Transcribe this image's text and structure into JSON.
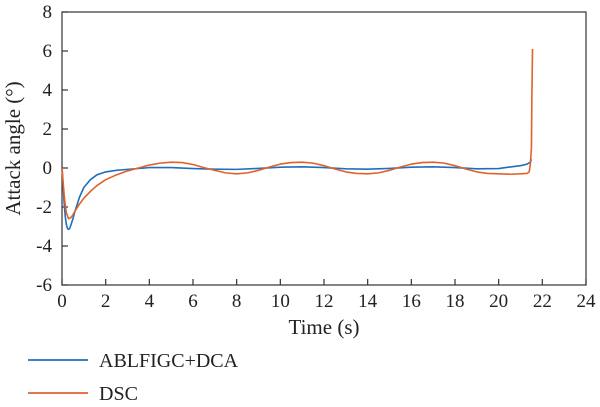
{
  "chart_data": {
    "type": "line",
    "title": "",
    "xlabel": "Time (s)",
    "ylabel": "Attack angle (°)",
    "xlim": [
      0,
      24
    ],
    "ylim": [
      -6,
      8
    ],
    "xticks": [
      0,
      2,
      4,
      6,
      8,
      10,
      12,
      14,
      16,
      18,
      20,
      22,
      24
    ],
    "yticks": [
      -6,
      -4,
      -2,
      0,
      2,
      4,
      6,
      8
    ],
    "grid": false,
    "legend_position": "bottom-left",
    "series": [
      {
        "name": "ABLFIGC+DCA",
        "color": "#1f6fbf",
        "x": [
          0,
          0.05,
          0.1,
          0.15,
          0.2,
          0.25,
          0.3,
          0.35,
          0.4,
          0.5,
          0.6,
          0.8,
          1.0,
          1.3,
          1.6,
          2.0,
          2.5,
          3.0,
          4.0,
          5.0,
          6.0,
          7.0,
          8.0,
          9.0,
          10.0,
          11.0,
          12.0,
          13.0,
          14.0,
          15.0,
          16.0,
          17.0,
          18.0,
          19.0,
          20.0,
          20.5,
          21.0,
          21.3,
          21.45,
          21.5
        ],
        "y": [
          0,
          -0.9,
          -1.8,
          -2.5,
          -2.9,
          -3.1,
          -3.15,
          -3.1,
          -2.95,
          -2.6,
          -2.2,
          -1.5,
          -1.0,
          -0.6,
          -0.35,
          -0.2,
          -0.12,
          -0.07,
          0.02,
          0.02,
          -0.03,
          -0.06,
          -0.07,
          -0.02,
          0.04,
          0.06,
          0.02,
          -0.04,
          -0.06,
          -0.02,
          0.04,
          0.06,
          0.02,
          -0.04,
          -0.03,
          0.05,
          0.12,
          0.2,
          0.3,
          0.45
        ]
      },
      {
        "name": "DSC",
        "color": "#e0622a",
        "x": [
          0,
          0.05,
          0.1,
          0.15,
          0.2,
          0.3,
          0.4,
          0.5,
          0.6,
          0.8,
          1.0,
          1.3,
          1.6,
          2.0,
          2.5,
          3.0,
          3.5,
          4.0,
          4.5,
          5.0,
          5.5,
          6.0,
          6.5,
          7.0,
          7.5,
          8.0,
          8.5,
          9.0,
          9.5,
          10.0,
          10.5,
          11.0,
          11.5,
          12.0,
          12.5,
          13.0,
          13.5,
          14.0,
          14.5,
          15.0,
          15.5,
          16.0,
          16.5,
          17.0,
          17.5,
          18.0,
          18.5,
          19.0,
          19.5,
          20.0,
          20.5,
          21.0,
          21.3,
          21.4,
          21.45,
          21.5,
          21.52,
          21.55
        ],
        "y": [
          0,
          -0.7,
          -1.4,
          -1.9,
          -2.3,
          -2.6,
          -2.55,
          -2.4,
          -2.2,
          -1.85,
          -1.55,
          -1.2,
          -0.9,
          -0.6,
          -0.35,
          -0.15,
          0.0,
          0.15,
          0.25,
          0.3,
          0.28,
          0.18,
          0.02,
          -0.12,
          -0.25,
          -0.3,
          -0.25,
          -0.12,
          0.05,
          0.2,
          0.28,
          0.3,
          0.25,
          0.12,
          -0.05,
          -0.2,
          -0.28,
          -0.3,
          -0.25,
          -0.12,
          0.05,
          0.2,
          0.28,
          0.3,
          0.25,
          0.12,
          -0.05,
          -0.2,
          -0.28,
          -0.3,
          -0.32,
          -0.3,
          -0.28,
          -0.2,
          0.2,
          1.0,
          3.5,
          6.1
        ]
      }
    ]
  }
}
